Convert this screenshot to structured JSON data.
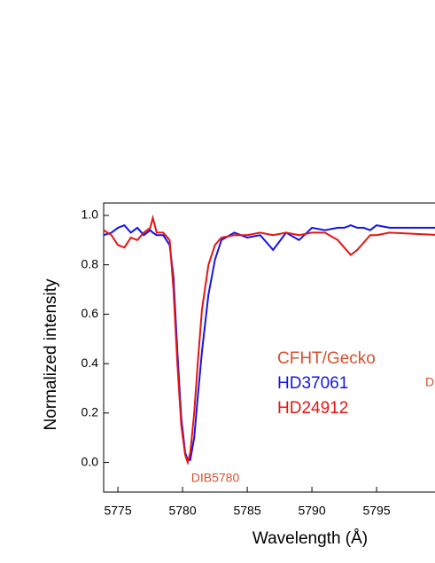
{
  "chart_data": {
    "type": "line",
    "xlabel": "Wavelength (Å)",
    "ylabel": "Normalized intensity",
    "x": [
      5773.9,
      5774.5,
      5775,
      5775.5,
      5776,
      5776.5,
      5777,
      5777.5,
      5777.7,
      5778,
      5778.5,
      5779,
      5779.3,
      5779.6,
      5779.9,
      5780.2,
      5780.4,
      5780.6,
      5780.9,
      5781.2,
      5781.5,
      5782,
      5782.5,
      5783,
      5784,
      5785,
      5786,
      5787,
      5788,
      5789,
      5790,
      5791,
      5792,
      5792.5,
      5793,
      5793.5,
      5794,
      5794.5,
      5795,
      5796,
      5800
    ],
    "series": [
      {
        "name": "HD37061",
        "color": "#1414e6",
        "values": [
          0.92,
          0.93,
          0.95,
          0.96,
          0.93,
          0.95,
          0.92,
          0.94,
          0.93,
          0.92,
          0.92,
          0.88,
          0.75,
          0.45,
          0.18,
          0.04,
          0.01,
          0.01,
          0.1,
          0.28,
          0.45,
          0.68,
          0.82,
          0.9,
          0.93,
          0.91,
          0.92,
          0.86,
          0.93,
          0.9,
          0.95,
          0.94,
          0.95,
          0.95,
          0.96,
          0.95,
          0.95,
          0.94,
          0.96,
          0.95,
          0.95
        ]
      },
      {
        "name": "HD24912",
        "color": "#e61414",
        "values": [
          0.94,
          0.92,
          0.88,
          0.87,
          0.91,
          0.9,
          0.93,
          0.95,
          0.99,
          0.93,
          0.93,
          0.9,
          0.7,
          0.4,
          0.15,
          0.03,
          0.0,
          0.04,
          0.2,
          0.42,
          0.62,
          0.8,
          0.88,
          0.91,
          0.92,
          0.92,
          0.93,
          0.92,
          0.93,
          0.92,
          0.93,
          0.93,
          0.9,
          0.87,
          0.84,
          0.86,
          0.89,
          0.92,
          0.92,
          0.93,
          0.92
        ]
      }
    ],
    "legend_title": "CFHT/Gecko",
    "annotations": [
      "DIB5780",
      "D"
    ],
    "annotation_color": "#d9502e",
    "xlim": [
      5773.9,
      5800
    ],
    "xticks": [
      5775,
      5780,
      5785,
      5790,
      5795
    ],
    "ylim": [
      -0.12,
      1.05
    ],
    "yticks": [
      {
        "value": 0,
        "label": "0.0"
      },
      {
        "value": 0.2,
        "label": "0.2"
      },
      0.4,
      0.6,
      0.8,
      {
        "value": 1,
        "label": "1.0"
      }
    ]
  }
}
